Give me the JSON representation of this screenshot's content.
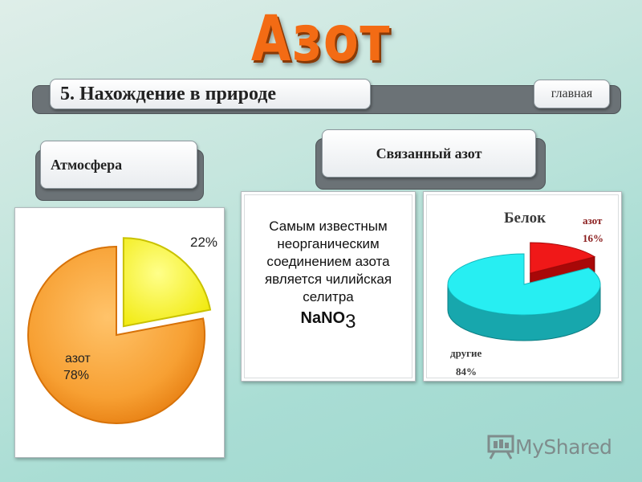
{
  "header": {
    "title": "Азот"
  },
  "nav": {
    "section_title": "5. Нахождение в природе",
    "home_label": "главная"
  },
  "tabs": {
    "atmosphere": "Атмосфера",
    "bound_nitrogen": "Связанный азот"
  },
  "bound_text": {
    "body": "Самым известным неорганическим соединением азота является чилийская селитра",
    "formula_main": "NaNO",
    "formula_sub": "3"
  },
  "atmosphere_chart": {
    "labels": {
      "other_pct": "22%",
      "nitrogen_name": "азот",
      "nitrogen_pct": "78%"
    }
  },
  "protein_chart": {
    "title": "Белок",
    "labels": {
      "nitrogen_name": "азот",
      "nitrogen_pct": "16%",
      "other_name": "другие",
      "other_pct": "84%"
    }
  },
  "chart_data": [
    {
      "type": "pie",
      "slices": [
        {
          "label": "азот",
          "value": 78,
          "color": "#f7a033"
        },
        {
          "label": "",
          "value": 22,
          "color": "#f8f424"
        }
      ]
    },
    {
      "type": "pie",
      "title": "Белок",
      "slices": [
        {
          "label": "азот",
          "value": 16,
          "color": "#f01010"
        },
        {
          "label": "другие",
          "value": 84,
          "color": "#1de6ec"
        }
      ]
    }
  ],
  "watermark": {
    "brand": "MyShared"
  },
  "colors": {
    "title": "#f36b14",
    "bar": "#6b7276"
  }
}
